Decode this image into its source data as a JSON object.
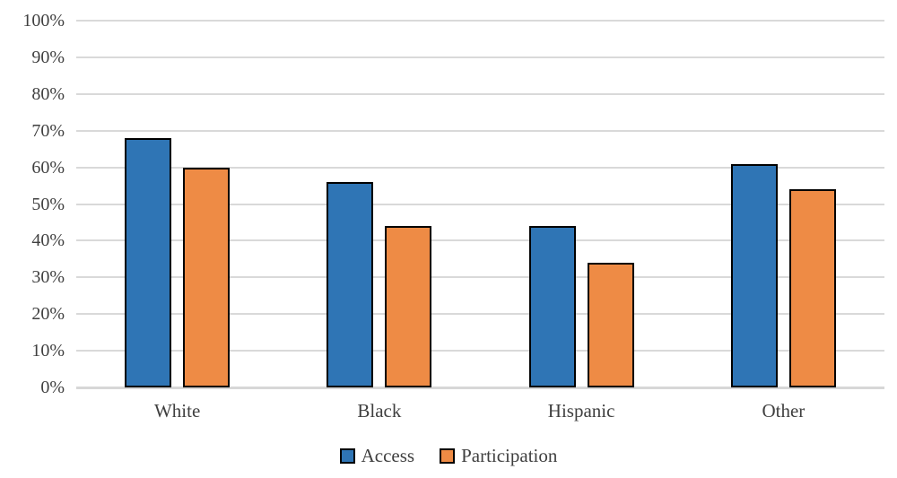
{
  "chart_data": {
    "type": "bar",
    "title": "",
    "xlabel": "",
    "ylabel": "",
    "categories": [
      "White",
      "Black",
      "Hispanic",
      "Other"
    ],
    "series": [
      {
        "name": "Access",
        "color": "#2f75b5",
        "values": [
          68,
          56,
          44,
          61
        ]
      },
      {
        "name": "Participation",
        "color": "#ee8b45",
        "values": [
          60,
          44,
          34,
          54
        ]
      }
    ],
    "ylim": [
      0,
      100
    ],
    "ytick_step": 10,
    "ytick_labels": [
      "0%",
      "10%",
      "20%",
      "30%",
      "40%",
      "50%",
      "60%",
      "70%",
      "80%",
      "90%",
      "100%"
    ],
    "grid": true,
    "legend_position": "bottom",
    "colors": {
      "grid": "#d9d9d9",
      "axis": "#d7d7d7",
      "text": "#3f3f3f",
      "bar_border": "#000000",
      "background": "#ffffff"
    }
  }
}
